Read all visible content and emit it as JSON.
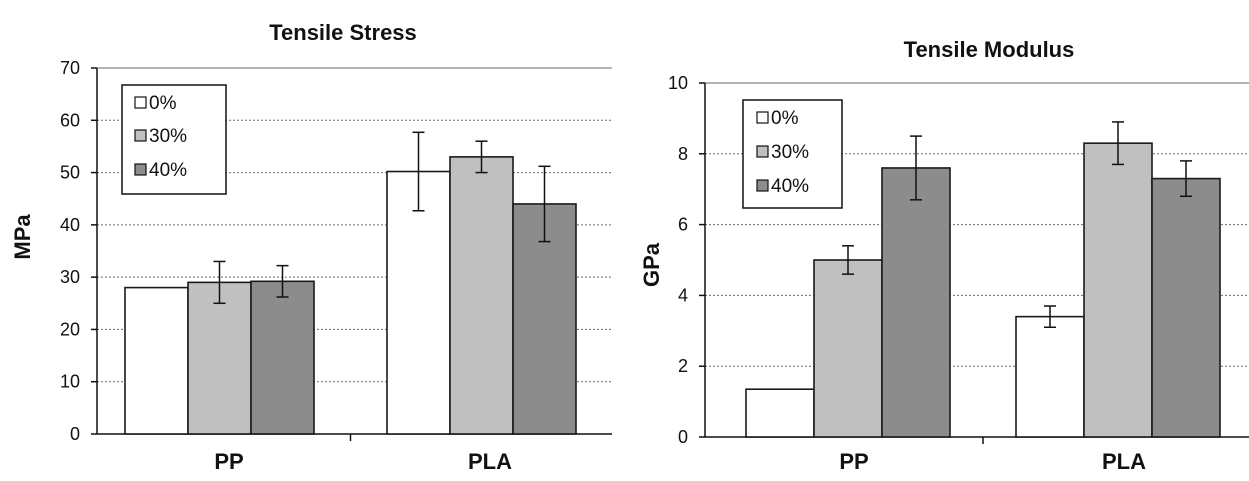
{
  "chart_data": [
    {
      "type": "bar",
      "title": "Tensile Stress",
      "ylabel": "MPa",
      "xlabel": "",
      "categories": [
        "PP",
        "PLA"
      ],
      "ylim": [
        0,
        70
      ],
      "yticks": [
        0,
        10,
        20,
        30,
        40,
        50,
        60,
        70
      ],
      "grid": true,
      "legend_position": "top-left",
      "series": [
        {
          "name": "0%",
          "color": "#ffffff",
          "values": [
            28,
            50.2
          ],
          "errors": [
            null,
            7.5
          ]
        },
        {
          "name": "30%",
          "color": "#c0c0c0",
          "values": [
            29,
            53
          ],
          "errors": [
            4,
            3
          ]
        },
        {
          "name": "40%",
          "color": "#8c8c8c",
          "values": [
            29.2,
            44
          ],
          "errors": [
            3,
            7.2
          ]
        }
      ]
    },
    {
      "type": "bar",
      "title": "Tensile Modulus",
      "ylabel": "GPa",
      "xlabel": "",
      "categories": [
        "PP",
        "PLA"
      ],
      "ylim": [
        0,
        10
      ],
      "yticks": [
        0,
        2,
        4,
        6,
        8,
        10
      ],
      "grid": true,
      "legend_position": "top-left",
      "series": [
        {
          "name": "0%",
          "color": "#ffffff",
          "values": [
            1.35,
            3.4
          ],
          "errors": [
            null,
            0.3
          ]
        },
        {
          "name": "30%",
          "color": "#c0c0c0",
          "values": [
            5,
            8.3
          ],
          "errors": [
            0.4,
            0.6
          ]
        },
        {
          "name": "40%",
          "color": "#8c8c8c",
          "values": [
            7.6,
            7.3
          ],
          "errors": [
            0.9,
            0.5
          ]
        }
      ]
    }
  ]
}
